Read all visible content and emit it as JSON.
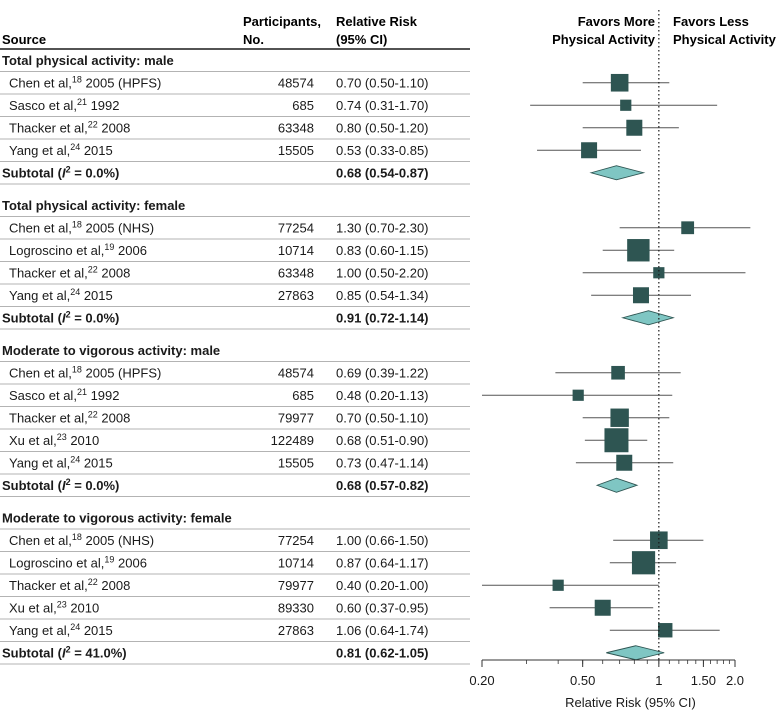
{
  "header": {
    "source": "Source",
    "participants": [
      "Participants,",
      "No."
    ],
    "rr": [
      "Relative Risk",
      "(95% CI)"
    ],
    "favors_more": [
      "Favors More",
      "Physical Activity"
    ],
    "favors_less": [
      "Favors Less",
      "Physical Activity"
    ]
  },
  "chart_data": {
    "type": "forest",
    "scale": "log",
    "xlim": [
      0.2,
      2.0
    ],
    "reference_line": 1,
    "xlabel": "Relative Risk (95% CI)",
    "ticks": [
      {
        "value": 0.2,
        "label": "0.20"
      },
      {
        "value": 0.5,
        "label": "0.50"
      },
      {
        "value": 1,
        "label": "1"
      },
      {
        "value": 1.5,
        "label": "1.50"
      },
      {
        "value": 2.0,
        "label": "2.0"
      }
    ],
    "groups": [
      {
        "title": "Total physical activity: male",
        "studies": [
          {
            "author": "Chen et al,",
            "ref": "18",
            "detail": " 2005 (HPFS)",
            "participants": "48574",
            "ci_text": "0.70 (0.50-1.10)",
            "rr": 0.7,
            "lo": 0.5,
            "hi": 1.1,
            "weight": 0.6
          },
          {
            "author": "Sasco et al,",
            "ref": "21",
            "detail": " 1992",
            "participants": "685",
            "ci_text": "0.74 (0.31-1.70)",
            "rr": 0.74,
            "lo": 0.31,
            "hi": 1.7,
            "weight": 0.2
          },
          {
            "author": "Thacker et al,",
            "ref": "22",
            "detail": " 2008",
            "participants": "63348",
            "ci_text": "0.80 (0.50-1.20)",
            "rr": 0.8,
            "lo": 0.5,
            "hi": 1.2,
            "weight": 0.5
          },
          {
            "author": "Yang et al,",
            "ref": "24",
            "detail": " 2015",
            "participants": "15505",
            "ci_text": "0.53 (0.33-0.85)",
            "rr": 0.53,
            "lo": 0.33,
            "hi": 0.85,
            "weight": 0.5
          }
        ],
        "subtotal": {
          "label_prefix": "Subtotal (",
          "label_i": "I",
          "label_sup": "2",
          "label_suffix": " = 0.0%)",
          "ci_text": "0.68 (0.54-0.87)",
          "rr": 0.68,
          "lo": 0.54,
          "hi": 0.87
        }
      },
      {
        "title": "Total physical activity: female",
        "studies": [
          {
            "author": "Chen et al,",
            "ref": "18",
            "detail": " 2005 (NHS)",
            "participants": "77254",
            "ci_text": "1.30 (0.70-2.30)",
            "rr": 1.3,
            "lo": 0.7,
            "hi": 2.3,
            "weight": 0.3
          },
          {
            "author": "Logroscino et al,",
            "ref": "19",
            "detail": " 2006",
            "participants": "10714",
            "ci_text": "0.83 (0.60-1.15)",
            "rr": 0.83,
            "lo": 0.6,
            "hi": 1.15,
            "weight": 0.9
          },
          {
            "author": "Thacker et al,",
            "ref": "22",
            "detail": " 2008",
            "participants": "63348",
            "ci_text": "1.00 (0.50-2.20)",
            "rr": 1.0,
            "lo": 0.5,
            "hi": 2.2,
            "weight": 0.2
          },
          {
            "author": "Yang et al,",
            "ref": "24",
            "detail": " 2015",
            "participants": "27863",
            "ci_text": "0.85 (0.54-1.34)",
            "rr": 0.85,
            "lo": 0.54,
            "hi": 1.34,
            "weight": 0.5
          }
        ],
        "subtotal": {
          "label_prefix": "Subtotal (",
          "label_i": "I",
          "label_sup": "2",
          "label_suffix": " = 0.0%)",
          "ci_text": "0.91 (0.72-1.14)",
          "rr": 0.91,
          "lo": 0.72,
          "hi": 1.14
        }
      },
      {
        "title": "Moderate to vigorous activity: male",
        "studies": [
          {
            "author": "Chen et al,",
            "ref": "18",
            "detail": " 2005 (HPFS)",
            "participants": "48574",
            "ci_text": "0.69 (0.39-1.22)",
            "rr": 0.69,
            "lo": 0.39,
            "hi": 1.22,
            "weight": 0.35
          },
          {
            "author": "Sasco et al,",
            "ref": "21",
            "detail": " 1992",
            "participants": "685",
            "ci_text": "0.48 (0.20-1.13)",
            "rr": 0.48,
            "lo": 0.2,
            "hi": 1.13,
            "weight": 0.2
          },
          {
            "author": "Thacker et al,",
            "ref": "22",
            "detail": " 2008",
            "participants": "79977",
            "ci_text": "0.70 (0.50-1.10)",
            "rr": 0.7,
            "lo": 0.5,
            "hi": 1.1,
            "weight": 0.65
          },
          {
            "author": "Xu et al,",
            "ref": "23",
            "detail": " 2010",
            "participants": "122489",
            "ci_text": "0.68 (0.51-0.90)",
            "rr": 0.68,
            "lo": 0.51,
            "hi": 0.9,
            "weight": 1.0
          },
          {
            "author": "Yang et al,",
            "ref": "24",
            "detail": " 2015",
            "participants": "15505",
            "ci_text": "0.73 (0.47-1.14)",
            "rr": 0.73,
            "lo": 0.47,
            "hi": 1.14,
            "weight": 0.5
          }
        ],
        "subtotal": {
          "label_prefix": "Subtotal (",
          "label_i": "I",
          "label_sup": "2",
          "label_suffix": " = 0.0%)",
          "ci_text": "0.68 (0.57-0.82)",
          "rr": 0.68,
          "lo": 0.57,
          "hi": 0.82
        }
      },
      {
        "title": "Moderate to vigorous activity: female",
        "studies": [
          {
            "author": "Chen et al,",
            "ref": "18",
            "detail": " 2005 (NHS)",
            "participants": "77254",
            "ci_text": "1.00 (0.66-1.50)",
            "rr": 1.0,
            "lo": 0.66,
            "hi": 1.5,
            "weight": 0.6
          },
          {
            "author": "Logroscino et al,",
            "ref": "19",
            "detail": " 2006",
            "participants": "10714",
            "ci_text": "0.87 (0.64-1.17)",
            "rr": 0.87,
            "lo": 0.64,
            "hi": 1.17,
            "weight": 0.95
          },
          {
            "author": "Thacker et al,",
            "ref": "22",
            "detail": " 2008",
            "participants": "79977",
            "ci_text": "0.40 (0.20-1.00)",
            "rr": 0.4,
            "lo": 0.2,
            "hi": 1.0,
            "weight": 0.2
          },
          {
            "author": "Xu et al,",
            "ref": "23",
            "detail": " 2010",
            "participants": "89330",
            "ci_text": "0.60 (0.37-0.95)",
            "rr": 0.6,
            "lo": 0.37,
            "hi": 0.95,
            "weight": 0.5
          },
          {
            "author": "Yang et al,",
            "ref": "24",
            "detail": " 2015",
            "participants": "27863",
            "ci_text": "1.06 (0.64-1.74)",
            "rr": 1.06,
            "lo": 0.64,
            "hi": 1.74,
            "weight": 0.4
          }
        ],
        "subtotal": {
          "label_prefix": "Subtotal (",
          "label_i": "I",
          "label_sup": "2",
          "label_suffix": " = 41.0%)",
          "ci_text": "0.81 (0.62-1.05)",
          "rr": 0.81,
          "lo": 0.62,
          "hi": 1.05
        }
      }
    ]
  },
  "colors": {
    "square": "#2e5552",
    "diamond_fill": "#7fc6c3",
    "diamond_stroke": "#2e5552",
    "line": "#555555",
    "rule": "#9a9a9a",
    "text": "#1a1a1a"
  }
}
